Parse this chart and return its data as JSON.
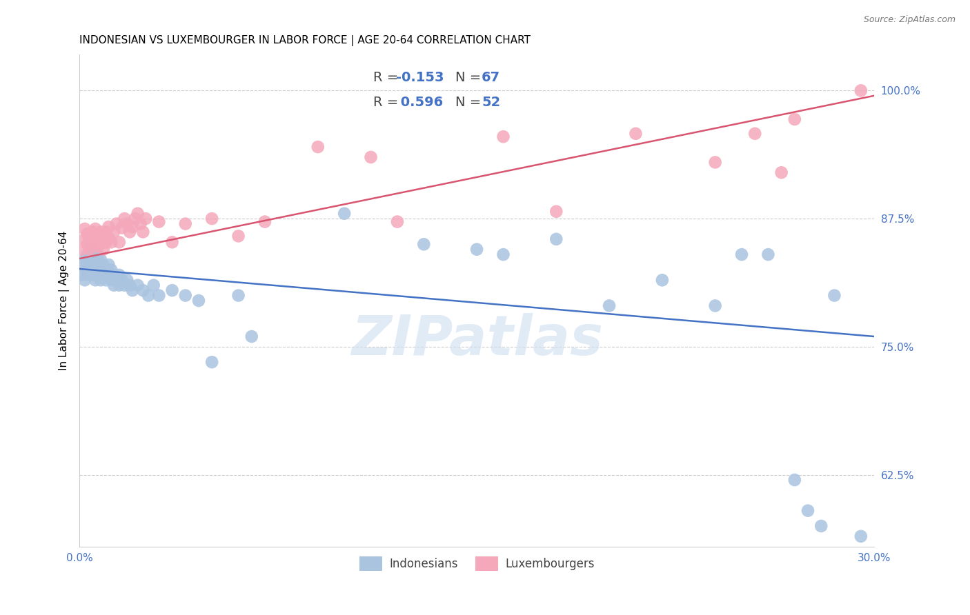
{
  "title": "INDONESIAN VS LUXEMBOURGER IN LABOR FORCE | AGE 20-64 CORRELATION CHART",
  "source": "Source: ZipAtlas.com",
  "ylabel": "In Labor Force | Age 20-64",
  "watermark": "ZIPatlas",
  "xmin": 0.0,
  "xmax": 0.3,
  "ymin": 0.555,
  "ymax": 1.035,
  "yticks": [
    0.625,
    0.75,
    0.875,
    1.0
  ],
  "ytick_labels": [
    "62.5%",
    "75.0%",
    "87.5%",
    "100.0%"
  ],
  "xticks": [
    0.0,
    0.05,
    0.1,
    0.15,
    0.2,
    0.25,
    0.3
  ],
  "xtick_labels": [
    "0.0%",
    "",
    "",
    "",
    "",
    "",
    "30.0%"
  ],
  "blue_R": -0.153,
  "blue_N": 67,
  "pink_R": 0.596,
  "pink_N": 52,
  "blue_color": "#aac4e0",
  "pink_color": "#f4a8ba",
  "blue_line_color": "#4472c4",
  "pink_line_color": "#d9546e",
  "blue_scatter_x": [
    0.001,
    0.001,
    0.002,
    0.002,
    0.002,
    0.003,
    0.003,
    0.003,
    0.004,
    0.004,
    0.004,
    0.005,
    0.005,
    0.005,
    0.006,
    0.006,
    0.006,
    0.007,
    0.007,
    0.007,
    0.008,
    0.008,
    0.008,
    0.009,
    0.009,
    0.01,
    0.01,
    0.011,
    0.011,
    0.012,
    0.012,
    0.013,
    0.013,
    0.014,
    0.015,
    0.015,
    0.016,
    0.017,
    0.018,
    0.019,
    0.02,
    0.022,
    0.024,
    0.026,
    0.028,
    0.03,
    0.035,
    0.04,
    0.045,
    0.05,
    0.06,
    0.065,
    0.1,
    0.13,
    0.15,
    0.16,
    0.18,
    0.2,
    0.22,
    0.24,
    0.25,
    0.26,
    0.27,
    0.275,
    0.28,
    0.285,
    0.295
  ],
  "blue_scatter_y": [
    0.82,
    0.83,
    0.815,
    0.825,
    0.835,
    0.82,
    0.83,
    0.84,
    0.825,
    0.835,
    0.845,
    0.82,
    0.83,
    0.84,
    0.815,
    0.825,
    0.835,
    0.82,
    0.83,
    0.84,
    0.815,
    0.825,
    0.835,
    0.82,
    0.83,
    0.815,
    0.825,
    0.82,
    0.83,
    0.815,
    0.825,
    0.81,
    0.82,
    0.815,
    0.81,
    0.82,
    0.815,
    0.81,
    0.815,
    0.81,
    0.805,
    0.81,
    0.805,
    0.8,
    0.81,
    0.8,
    0.805,
    0.8,
    0.795,
    0.735,
    0.8,
    0.76,
    0.88,
    0.85,
    0.845,
    0.84,
    0.855,
    0.79,
    0.815,
    0.79,
    0.84,
    0.84,
    0.62,
    0.59,
    0.575,
    0.8,
    0.565
  ],
  "pink_scatter_x": [
    0.001,
    0.002,
    0.002,
    0.003,
    0.003,
    0.004,
    0.004,
    0.005,
    0.005,
    0.006,
    0.006,
    0.007,
    0.007,
    0.008,
    0.008,
    0.009,
    0.009,
    0.01,
    0.01,
    0.011,
    0.011,
    0.012,
    0.013,
    0.014,
    0.015,
    0.016,
    0.017,
    0.018,
    0.019,
    0.02,
    0.021,
    0.022,
    0.023,
    0.024,
    0.025,
    0.03,
    0.035,
    0.04,
    0.05,
    0.06,
    0.07,
    0.09,
    0.11,
    0.12,
    0.16,
    0.18,
    0.21,
    0.24,
    0.255,
    0.265,
    0.27,
    0.295
  ],
  "pink_scatter_y": [
    0.845,
    0.855,
    0.865,
    0.85,
    0.86,
    0.845,
    0.858,
    0.85,
    0.862,
    0.855,
    0.865,
    0.848,
    0.86,
    0.852,
    0.862,
    0.845,
    0.857,
    0.852,
    0.862,
    0.867,
    0.856,
    0.852,
    0.862,
    0.87,
    0.852,
    0.866,
    0.875,
    0.87,
    0.862,
    0.867,
    0.875,
    0.88,
    0.87,
    0.862,
    0.875,
    0.872,
    0.852,
    0.87,
    0.875,
    0.858,
    0.872,
    0.945,
    0.935,
    0.872,
    0.955,
    0.882,
    0.958,
    0.93,
    0.958,
    0.92,
    0.972,
    1.0
  ],
  "blue_line_x": [
    0.0,
    0.3
  ],
  "blue_line_y": [
    0.826,
    0.76
  ],
  "pink_line_x": [
    0.0,
    0.3
  ],
  "pink_line_y": [
    0.836,
    0.995
  ],
  "background_color": "#ffffff",
  "grid_color": "#cccccc",
  "title_fontsize": 11,
  "axis_label_fontsize": 11,
  "tick_fontsize": 11,
  "legend_fontsize": 14
}
